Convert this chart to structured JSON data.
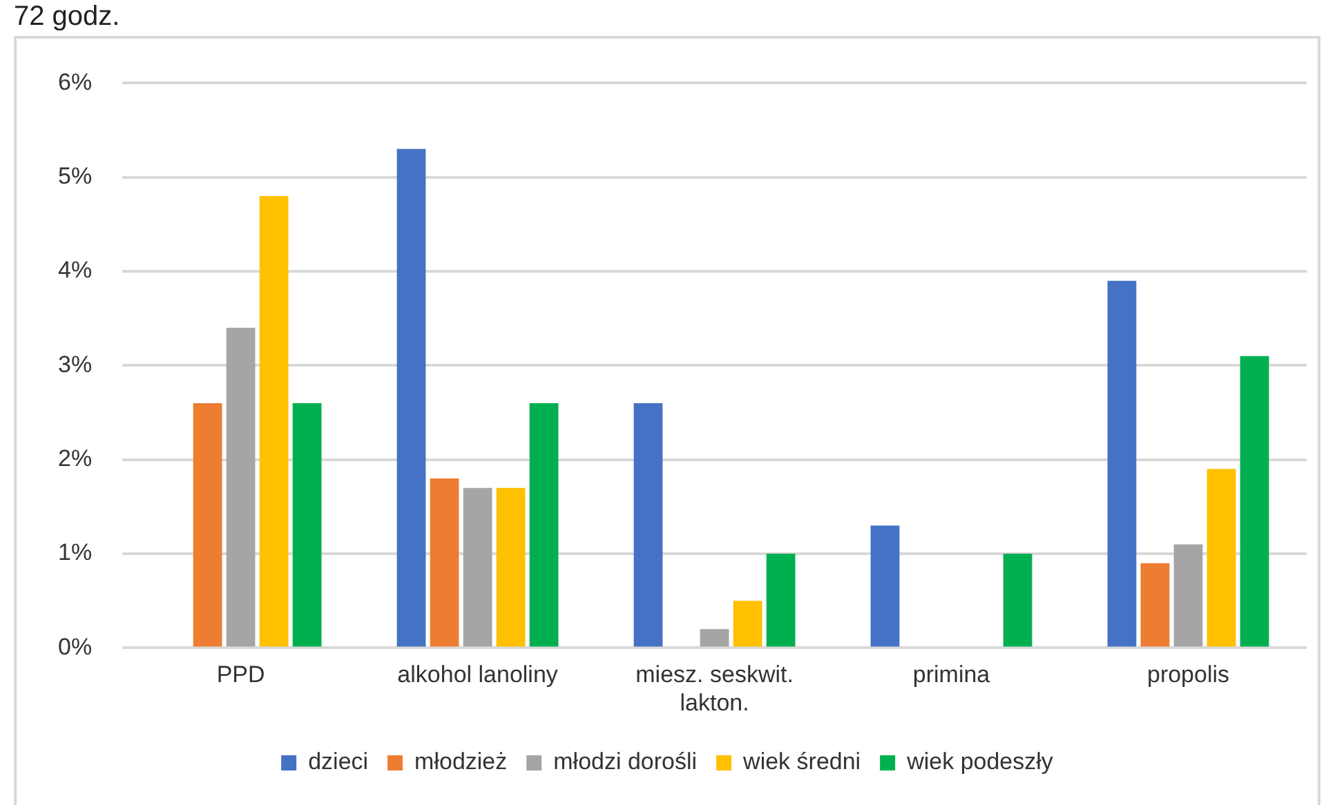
{
  "chart_data": {
    "type": "bar",
    "title": "72 godz.",
    "categories": [
      "PPD",
      "alkohol lanoliny",
      "miesz. seskwit. lakton.",
      "primina",
      "propolis"
    ],
    "series": [
      {
        "name": "dzieci",
        "color": "#4472c4",
        "values": [
          0,
          5.3,
          2.6,
          1.3,
          3.9
        ]
      },
      {
        "name": "młodzież",
        "color": "#ed7d31",
        "values": [
          2.6,
          1.8,
          0,
          0,
          0.9
        ]
      },
      {
        "name": "młodzi dorośli",
        "color": "#a5a5a5",
        "values": [
          3.4,
          1.7,
          0.2,
          0,
          1.1
        ]
      },
      {
        "name": "wiek średni",
        "color": "#ffc000",
        "values": [
          4.8,
          1.7,
          0.5,
          0,
          1.9
        ]
      },
      {
        "name": "wiek podeszły",
        "color": "#00b050",
        "values": [
          2.6,
          2.6,
          1.0,
          1.0,
          3.1
        ]
      }
    ],
    "ylim": [
      0,
      6
    ],
    "yticks": [
      {
        "value": 0,
        "label": "0%"
      },
      {
        "value": 1,
        "label": "1%"
      },
      {
        "value": 2,
        "label": "2%"
      },
      {
        "value": 3,
        "label": "3%"
      },
      {
        "value": 4,
        "label": "4%"
      },
      {
        "value": 5,
        "label": "5%"
      },
      {
        "value": 6,
        "label": "6%"
      }
    ],
    "grid": "y",
    "legend": "bottom"
  }
}
